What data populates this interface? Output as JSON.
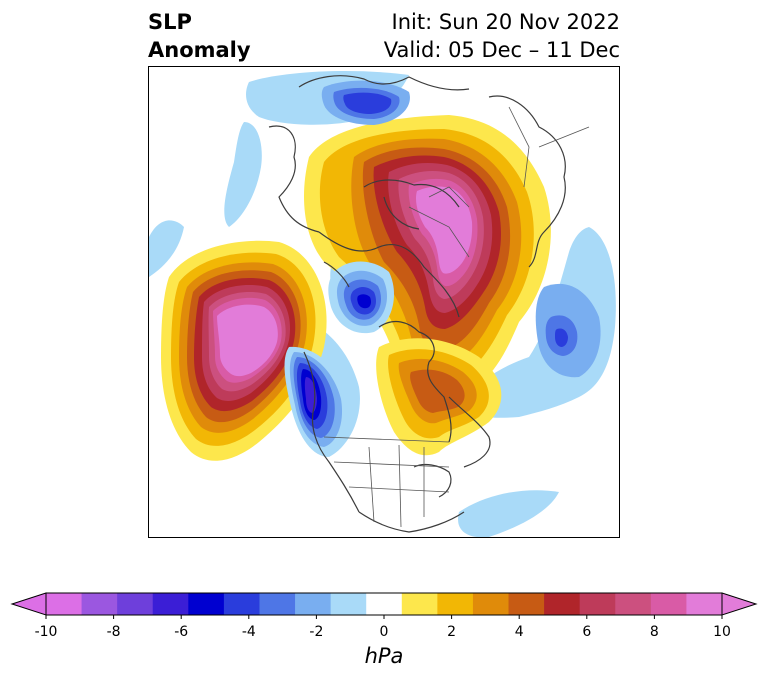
{
  "header": {
    "variable_line1": "SLP",
    "variable_line2": "Anomaly",
    "init_text": "Init: Sun 20 Nov 2022",
    "valid_text": "Valid: 05 Dec – 11 Dec"
  },
  "colorbar": {
    "units": "hPa",
    "tick_labels": [
      "-10",
      "-8",
      "-6",
      "-4",
      "-2",
      "0",
      "2",
      "4",
      "6",
      "8",
      "10"
    ],
    "levels": [
      -10,
      -9,
      -8,
      -7,
      -6,
      -5,
      -4,
      -3,
      -2,
      -1,
      1,
      2,
      3,
      4,
      5,
      6,
      7,
      8,
      9,
      10
    ],
    "colors": [
      "#dc6fe6",
      "#9b57e0",
      "#6e3fdb",
      "#3b1ed6",
      "#0000d0",
      "#2a3ddc",
      "#4e76e6",
      "#79aef0",
      "#a9daf8",
      "#ffffff",
      "#fde74c",
      "#f2b705",
      "#e08b0a",
      "#c75b14",
      "#b0252a",
      "#be3b5a",
      "#cc507f",
      "#d95ba6",
      "#e27cd9"
    ],
    "extend_low_color": "#dc6fe6",
    "extend_high_color": "#e27cd9"
  },
  "map": {
    "projection": "north-polar-stereographic",
    "features": [
      {
        "name": "Arctic / Siberia positive anomaly",
        "peak_hPa": 10
      },
      {
        "name": "Gulf of Alaska positive anomaly",
        "peak_hPa": 10
      },
      {
        "name": "Western North America negative anomaly",
        "peak_hPa": -7
      },
      {
        "name": "Hudson Bay negative anomaly",
        "peak_hPa": -6
      },
      {
        "name": "Scandinavia negative anomaly",
        "peak_hPa": -6
      },
      {
        "name": "North Atlantic negative anomaly",
        "peak_hPa": -3
      },
      {
        "name": "Greenland / Baffin positive anomaly",
        "peak_hPa": 6
      }
    ]
  }
}
